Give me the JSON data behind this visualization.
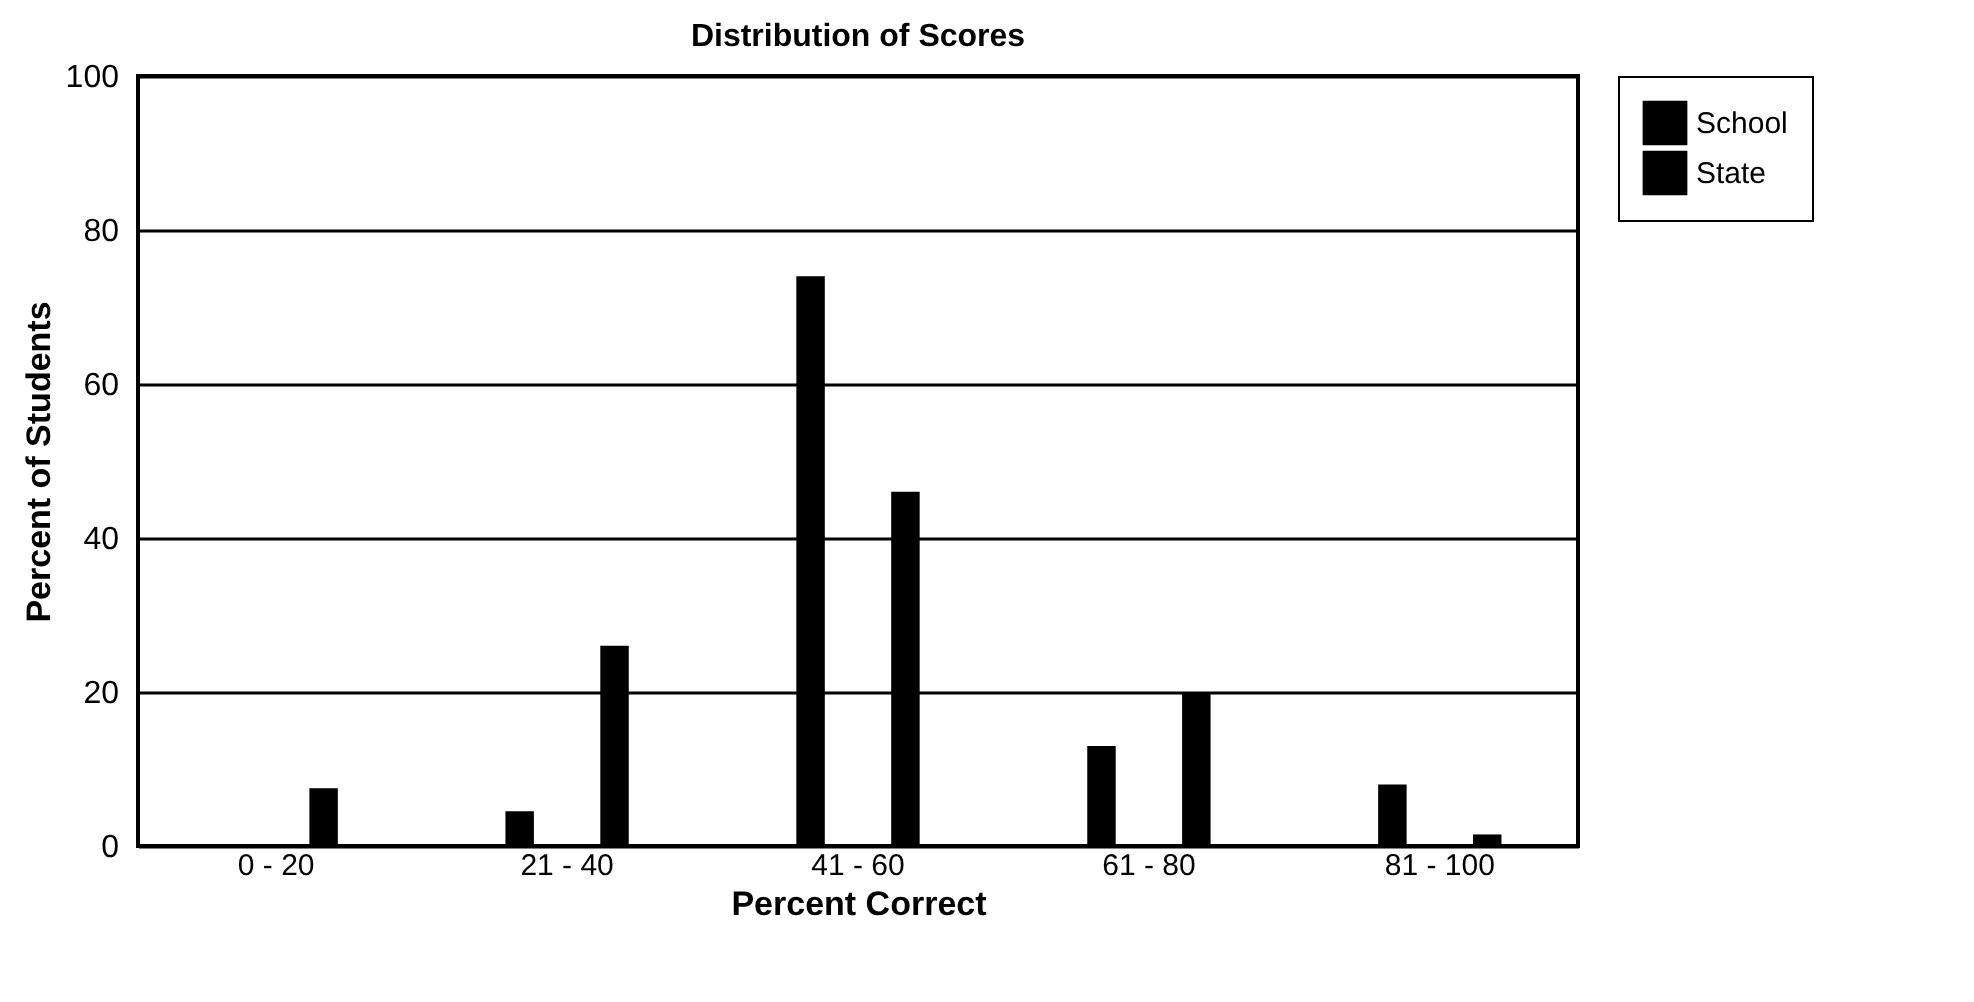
{
  "chart_data": {
    "type": "bar",
    "title": "Distribution of Scores",
    "xlabel": "Percent Correct",
    "ylabel": "Percent of Students",
    "categories": [
      "0 - 20",
      "21 - 40",
      "41 - 60",
      "61 - 80",
      "81 - 100"
    ],
    "series": [
      {
        "name": "School",
        "color": "#000000",
        "values": [
          0,
          4.5,
          74,
          13,
          8
        ]
      },
      {
        "name": "State",
        "color": "#000000",
        "values": [
          7.5,
          26,
          46,
          20,
          1.5
        ]
      }
    ],
    "ylim": [
      0,
      100
    ],
    "yticks": [
      0,
      20,
      40,
      60,
      80,
      100
    ],
    "grid": "y",
    "legend": "right"
  }
}
